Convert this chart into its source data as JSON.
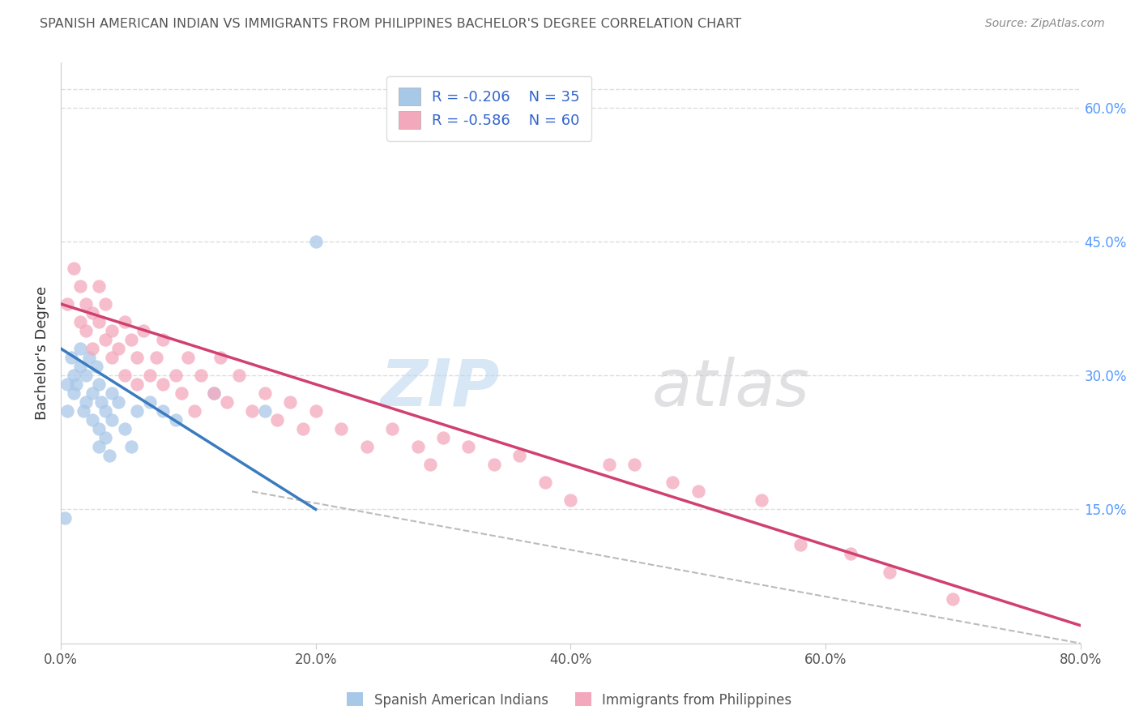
{
  "title": "SPANISH AMERICAN INDIAN VS IMMIGRANTS FROM PHILIPPINES BACHELOR'S DEGREE CORRELATION CHART",
  "source": "Source: ZipAtlas.com",
  "xlabel_ticks": [
    "0.0%",
    "20.0%",
    "40.0%",
    "60.0%",
    "80.0%"
  ],
  "xlabel_vals": [
    0,
    20,
    40,
    60,
    80
  ],
  "ylabel_right_ticks": [
    "15.0%",
    "30.0%",
    "45.0%",
    "60.0%"
  ],
  "ylabel_right_vals": [
    15,
    30,
    45,
    60
  ],
  "ylabel_label": "Bachelor's Degree",
  "xlim": [
    0,
    80
  ],
  "ylim": [
    0,
    65
  ],
  "legend_blue_r": "R = -0.206",
  "legend_blue_n": "N = 35",
  "legend_pink_r": "R = -0.586",
  "legend_pink_n": "N = 60",
  "blue_color": "#a8c8e8",
  "pink_color": "#f4a8bc",
  "blue_line_color": "#3a7bbf",
  "pink_line_color": "#d04070",
  "dashed_line_color": "#bbbbbb",
  "blue_scatter_x": [
    0.3,
    0.5,
    0.5,
    0.8,
    1.0,
    1.0,
    1.2,
    1.5,
    1.5,
    1.8,
    2.0,
    2.0,
    2.2,
    2.5,
    2.5,
    2.8,
    3.0,
    3.0,
    3.0,
    3.2,
    3.5,
    3.5,
    3.8,
    4.0,
    4.0,
    4.5,
    5.0,
    5.5,
    6.0,
    7.0,
    8.0,
    9.0,
    12.0,
    16.0,
    20.0
  ],
  "blue_scatter_y": [
    14,
    29,
    26,
    32,
    30,
    28,
    29,
    33,
    31,
    26,
    30,
    27,
    32,
    28,
    25,
    31,
    29,
    24,
    22,
    27,
    26,
    23,
    21,
    28,
    25,
    27,
    24,
    22,
    26,
    27,
    26,
    25,
    28,
    26,
    45
  ],
  "pink_scatter_x": [
    0.5,
    1.0,
    1.5,
    1.5,
    2.0,
    2.0,
    2.5,
    2.5,
    3.0,
    3.0,
    3.5,
    3.5,
    4.0,
    4.0,
    4.5,
    5.0,
    5.0,
    5.5,
    6.0,
    6.0,
    6.5,
    7.0,
    7.5,
    8.0,
    8.0,
    9.0,
    9.5,
    10.0,
    10.5,
    11.0,
    12.0,
    12.5,
    13.0,
    14.0,
    15.0,
    16.0,
    17.0,
    18.0,
    19.0,
    20.0,
    22.0,
    24.0,
    26.0,
    28.0,
    29.0,
    30.0,
    32.0,
    34.0,
    36.0,
    38.0,
    40.0,
    43.0,
    45.0,
    48.0,
    50.0,
    55.0,
    58.0,
    62.0,
    65.0,
    70.0
  ],
  "pink_scatter_y": [
    38,
    42,
    40,
    36,
    38,
    35,
    37,
    33,
    36,
    40,
    34,
    38,
    35,
    32,
    33,
    36,
    30,
    34,
    32,
    29,
    35,
    30,
    32,
    29,
    34,
    30,
    28,
    32,
    26,
    30,
    28,
    32,
    27,
    30,
    26,
    28,
    25,
    27,
    24,
    26,
    24,
    22,
    24,
    22,
    20,
    23,
    22,
    20,
    21,
    18,
    16,
    20,
    20,
    18,
    17,
    16,
    11,
    10,
    8,
    5
  ],
  "blue_line_x": [
    0,
    20
  ],
  "blue_line_y": [
    33,
    15
  ],
  "pink_line_x": [
    0,
    80
  ],
  "pink_line_y": [
    38,
    2
  ],
  "dashed_line_x": [
    15,
    80
  ],
  "dashed_line_y": [
    17,
    0
  ],
  "background_color": "#ffffff",
  "grid_color": "#dddddd"
}
